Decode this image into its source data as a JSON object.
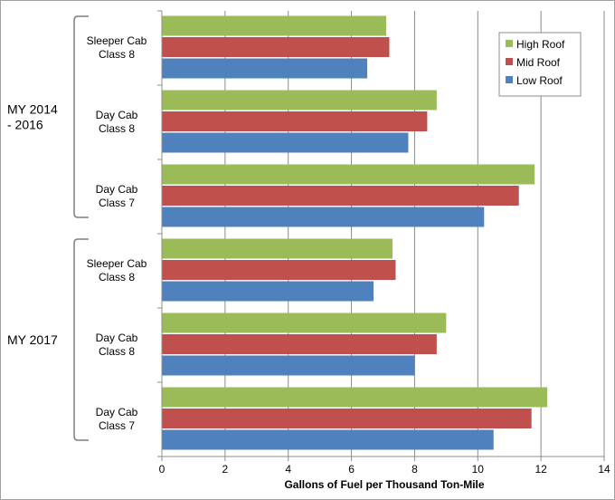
{
  "chart_data": {
    "type": "bar",
    "orientation": "horizontal",
    "title": "",
    "xlabel": "Gallons of Fuel per Thousand  Ton-Mile",
    "ylabel": "",
    "xlim": [
      0,
      14
    ],
    "xticks": [
      "0",
      "2",
      "4",
      "6",
      "8",
      "10",
      "12",
      "14"
    ],
    "grid": true,
    "legend_position": "top-right",
    "groups": [
      {
        "label_lines": [
          "MY 2014",
          "- 2016"
        ]
      },
      {
        "label_lines": [
          "MY 2017"
        ]
      }
    ],
    "categories": [
      {
        "lines": [
          "Sleeper Cab",
          "Class 8"
        ]
      },
      {
        "lines": [
          "Day Cab",
          "Class 8"
        ]
      },
      {
        "lines": [
          "Day Cab",
          "Class 7"
        ]
      },
      {
        "lines": [
          "Sleeper Cab",
          "Class 8"
        ]
      },
      {
        "lines": [
          "Day Cab",
          "Class 8"
        ]
      },
      {
        "lines": [
          "Day Cab",
          "Class 7"
        ]
      }
    ],
    "series": [
      {
        "name": "High Roof",
        "color": "#9bbb59",
        "values": [
          7.1,
          8.7,
          11.8,
          7.3,
          9.0,
          12.2
        ]
      },
      {
        "name": "Mid Roof",
        "color": "#c0504d",
        "values": [
          7.2,
          8.4,
          11.3,
          7.4,
          8.7,
          11.7
        ]
      },
      {
        "name": "Low Roof",
        "color": "#4f81bd",
        "values": [
          6.5,
          7.8,
          10.2,
          6.7,
          8.0,
          10.5
        ]
      }
    ]
  }
}
